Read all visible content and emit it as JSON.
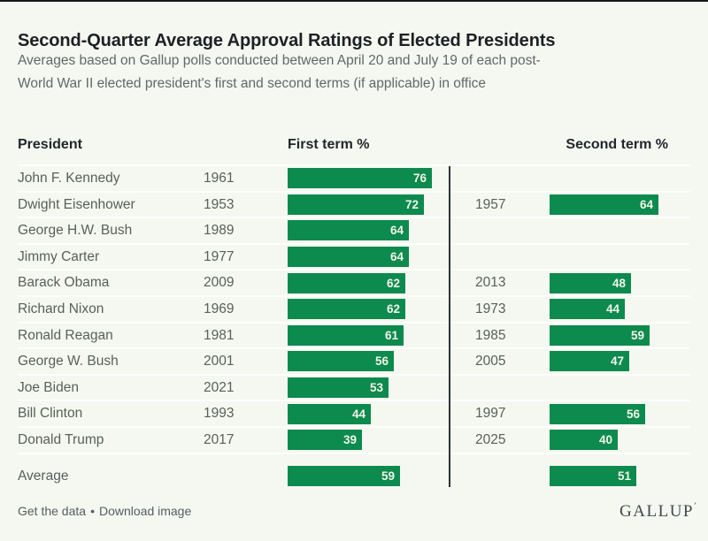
{
  "page": {
    "title": "Second-Quarter Average Approval Ratings of Elected Presidents",
    "subtitle_line1": "Averages based on Gallup polls conducted between April 20 and July 19 of each post-",
    "subtitle_line2": "World War II elected president's first and second terms (if applicable) in office"
  },
  "table": {
    "col_president": "President",
    "col_first": "First term %",
    "col_second": "Second term %"
  },
  "chart_data": {
    "type": "bar",
    "orientation": "horizontal",
    "unit": "%",
    "value_range": [
      0,
      100
    ],
    "panels": [
      "First term %",
      "Second term %"
    ],
    "title": "Second-Quarter Average Approval Ratings of Elected Presidents",
    "subtitle": "Averages based on Gallup polls conducted between April 20 and July 19 of each post-World War II elected president's first and second terms (if applicable) in office",
    "rows": [
      {
        "president": "John F. Kennedy",
        "first_term_year": "1961",
        "first_term_pct": 76,
        "second_term_year": "",
        "second_term_pct": null
      },
      {
        "president": "Dwight Eisenhower",
        "first_term_year": "1953",
        "first_term_pct": 72,
        "second_term_year": "1957",
        "second_term_pct": 64
      },
      {
        "president": "George H.W. Bush",
        "first_term_year": "1989",
        "first_term_pct": 64,
        "second_term_year": "",
        "second_term_pct": null
      },
      {
        "president": "Jimmy Carter",
        "first_term_year": "1977",
        "first_term_pct": 64,
        "second_term_year": "",
        "second_term_pct": null
      },
      {
        "president": "Barack Obama",
        "first_term_year": "2009",
        "first_term_pct": 62,
        "second_term_year": "2013",
        "second_term_pct": 48
      },
      {
        "president": "Richard Nixon",
        "first_term_year": "1969",
        "first_term_pct": 62,
        "second_term_year": "1973",
        "second_term_pct": 44
      },
      {
        "president": "Ronald Reagan",
        "first_term_year": "1981",
        "first_term_pct": 61,
        "second_term_year": "1985",
        "second_term_pct": 59
      },
      {
        "president": "George W. Bush",
        "first_term_year": "2001",
        "first_term_pct": 56,
        "second_term_year": "2005",
        "second_term_pct": 47
      },
      {
        "president": "Joe Biden",
        "first_term_year": "2021",
        "first_term_pct": 53,
        "second_term_year": "",
        "second_term_pct": null
      },
      {
        "president": "Bill Clinton",
        "first_term_year": "1993",
        "first_term_pct": 44,
        "second_term_year": "1997",
        "second_term_pct": 56
      },
      {
        "president": "Donald Trump",
        "first_term_year": "2017",
        "first_term_pct": 39,
        "second_term_year": "2025",
        "second_term_pct": 40
      }
    ],
    "average": {
      "label": "Average",
      "first_term_pct": 59,
      "second_term_pct": 51
    }
  },
  "footer": {
    "get_data": "Get the data",
    "separator": "•",
    "download": "Download image",
    "brand": "GALLUP",
    "brand_mark": "’"
  },
  "colors": {
    "bar_green": "#0d8a4e",
    "background": "#f4f8f0",
    "divider": "#2e3338",
    "row_separator": "#fdfefc",
    "title_text": "#1d2024",
    "body_text": "#595f5c",
    "value_text": "#f2f5ea"
  }
}
